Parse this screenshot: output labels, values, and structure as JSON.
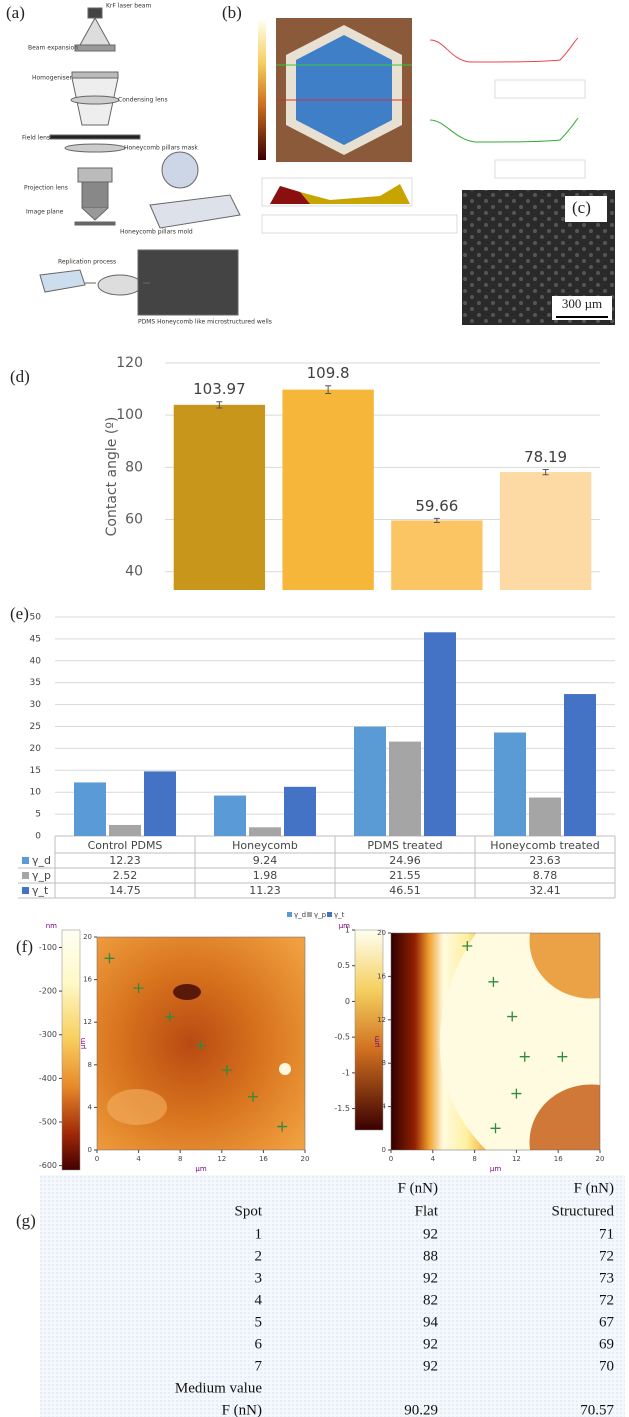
{
  "panel_labels": [
    "(a)",
    "(b)",
    "(c)",
    "(d)",
    "(e)",
    "(f)",
    "(g)"
  ],
  "diagram_a": {
    "labels": [
      "KrF laser beam",
      "Beam expansion",
      "Homogeniser",
      "Condensing lens",
      "Field lens",
      "Honeycomb pillars mask",
      "Projection lens",
      "Image plane",
      "Honeycomb pillars mold",
      "Replication process",
      "PDMS Honeycomb like microstructured wells"
    ]
  },
  "image_c": {
    "scale_bar": "300 µm"
  },
  "chart_data": [
    {
      "type": "bar",
      "ylabel": "Contact angle (º)",
      "values": [
        103.97,
        109.8,
        59.66,
        78.19
      ],
      "errors": [
        1.2,
        1.5,
        0.8,
        1.0
      ],
      "colors": [
        "#c9961c",
        "#f6b63a",
        "#fbc564",
        "#fdd9a3"
      ],
      "ylim": [
        33,
        120
      ],
      "yticks": [
        40,
        60,
        80,
        100,
        120
      ],
      "grid": true
    },
    {
      "type": "bar",
      "categories": [
        "Control PDMS",
        "Honeycomb",
        "PDMS treated",
        "Honeycomb treated"
      ],
      "series": [
        {
          "name": "γ_d",
          "color": "#5b9bd5",
          "values": [
            12.23,
            9.24,
            24.96,
            23.63
          ]
        },
        {
          "name": "γ_p",
          "color": "#a5a5a5",
          "values": [
            2.52,
            1.98,
            21.55,
            8.78
          ]
        },
        {
          "name": "γ_t",
          "color": "#4472c4",
          "values": [
            14.75,
            11.23,
            46.51,
            32.41
          ]
        }
      ],
      "ylim": [
        0,
        50
      ],
      "yticks": [
        0,
        5,
        10,
        15,
        20,
        25,
        30,
        35,
        40,
        45,
        50
      ],
      "grid": true,
      "data_table": true,
      "legend": "bottom"
    },
    {
      "type": "heatmap",
      "xlabel": "µm",
      "ylabel": "µm",
      "colorbar_label": "nm",
      "clim": [
        -610,
        -60
      ],
      "cticks": [
        -600,
        -500,
        -400,
        -300,
        -200,
        -100
      ],
      "xlim": [
        0,
        20
      ],
      "ylim": [
        0,
        20
      ],
      "xticks": [
        0,
        4,
        8,
        12,
        16,
        20
      ],
      "yticks": [
        0,
        4,
        8,
        12,
        16,
        20
      ],
      "markers": {
        "color": "#2e8b3e",
        "x": [
          1.2,
          4,
          7,
          10,
          12.5,
          15,
          17.8
        ],
        "y": [
          18,
          15.2,
          12.5,
          9.8,
          7.5,
          5,
          2.2
        ]
      }
    },
    {
      "type": "heatmap",
      "xlabel": "µm",
      "ylabel": "µm",
      "colorbar_label": "µm",
      "clim": [
        -1.8,
        1
      ],
      "cticks": [
        -1.5,
        -1,
        -0.5,
        0,
        0.5,
        1
      ],
      "xlim": [
        0,
        20
      ],
      "ylim": [
        0,
        20
      ],
      "xticks": [
        0,
        4,
        8,
        12,
        16,
        20
      ],
      "yticks": [
        0,
        4,
        8,
        12,
        16,
        20
      ],
      "markers": {
        "color": "#2e8b3e",
        "x": [
          7.3,
          9.8,
          11.6,
          12.8,
          16.4,
          12,
          10
        ],
        "y": [
          18.8,
          15.5,
          12.3,
          8.6,
          8.6,
          5.2,
          2
        ]
      }
    }
  ],
  "table": {
    "header_top": [
      "F (nN)",
      "F (nN)"
    ],
    "columns": [
      "Spot",
      "Flat",
      "Structured"
    ],
    "rows": [
      [
        1,
        92,
        71
      ],
      [
        2,
        88,
        72
      ],
      [
        3,
        92,
        73
      ],
      [
        4,
        82,
        72
      ],
      [
        5,
        94,
        67
      ],
      [
        6,
        92,
        69
      ],
      [
        7,
        92,
        70
      ]
    ],
    "summary_label": "Medium value",
    "summary": [
      "F (nN)",
      90.29,
      70.57
    ]
  }
}
